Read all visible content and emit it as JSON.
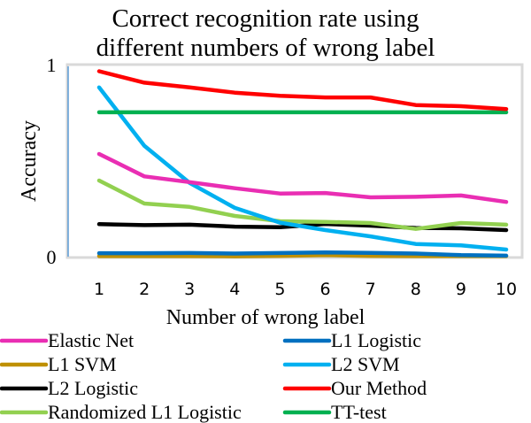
{
  "chart_data": {
    "type": "line",
    "title": "Correct recognition rate using different numbers of wrong label",
    "title_lines": [
      "Correct recognition rate using",
      "different numbers of wrong label"
    ],
    "xlabel": "Number of wrong label",
    "ylabel": "Accuracy",
    "x": [
      1,
      2,
      3,
      4,
      5,
      6,
      7,
      8,
      9,
      10
    ],
    "ylim": [
      0,
      1
    ],
    "yticks": [
      "0",
      "1"
    ],
    "grid": false,
    "legend_position": "bottom",
    "series": [
      {
        "name": "Elastic Net",
        "color": "#E92EB3",
        "values": [
          0.537,
          0.42,
          0.39,
          0.358,
          0.33,
          0.333,
          0.31,
          0.313,
          0.32,
          0.286
        ]
      },
      {
        "name": "L1 Logistic",
        "color": "#0070C0",
        "values": [
          0.018,
          0.018,
          0.019,
          0.016,
          0.019,
          0.022,
          0.02,
          0.016,
          0.008,
          0.005
        ]
      },
      {
        "name": "L1 SVM",
        "color": "#BF9000",
        "values": [
          0.003,
          0.003,
          0.003,
          0.002,
          0.004,
          0.008,
          0.004,
          0.003,
          0.003,
          0.003
        ]
      },
      {
        "name": "L2 SVM",
        "color": "#00B0F0",
        "values": [
          0.885,
          0.58,
          0.386,
          0.255,
          0.178,
          0.139,
          0.106,
          0.066,
          0.059,
          0.037
        ]
      },
      {
        "name": "L2 Logistic",
        "color": "#000000",
        "values": [
          0.17,
          0.165,
          0.167,
          0.157,
          0.154,
          0.171,
          0.162,
          0.15,
          0.148,
          0.139
        ]
      },
      {
        "name": "Our Method",
        "color": "#FF0000",
        "values": [
          0.97,
          0.91,
          0.885,
          0.858,
          0.841,
          0.833,
          0.833,
          0.793,
          0.787,
          0.772
        ]
      },
      {
        "name": "Randomized L1 Logistic",
        "color": "#92D050",
        "values": [
          0.398,
          0.278,
          0.26,
          0.213,
          0.185,
          0.182,
          0.176,
          0.145,
          0.176,
          0.167
        ]
      },
      {
        "name": "TT-test",
        "color": "#00B050",
        "values": [
          0.755,
          0.755,
          0.755,
          0.755,
          0.755,
          0.755,
          0.755,
          0.755,
          0.755,
          0.755
        ]
      }
    ]
  },
  "legend": {
    "items": [
      {
        "name": "Elastic Net",
        "color": "#E92EB3"
      },
      {
        "name": "L1 Logistic",
        "color": "#0070C0"
      },
      {
        "name": "L1 SVM",
        "color": "#BF9000"
      },
      {
        "name": "L2 SVM",
        "color": "#00B0F0"
      },
      {
        "name": "L2 Logistic",
        "color": "#000000"
      },
      {
        "name": "Our Method",
        "color": "#FF0000"
      },
      {
        "name": "Randomized L1 Logistic",
        "color": "#92D050"
      },
      {
        "name": "TT-test",
        "color": "#00B050"
      }
    ]
  },
  "colors": {
    "plot_border": "#D9D9D9",
    "y_axis_line": "#5B9BD5"
  }
}
